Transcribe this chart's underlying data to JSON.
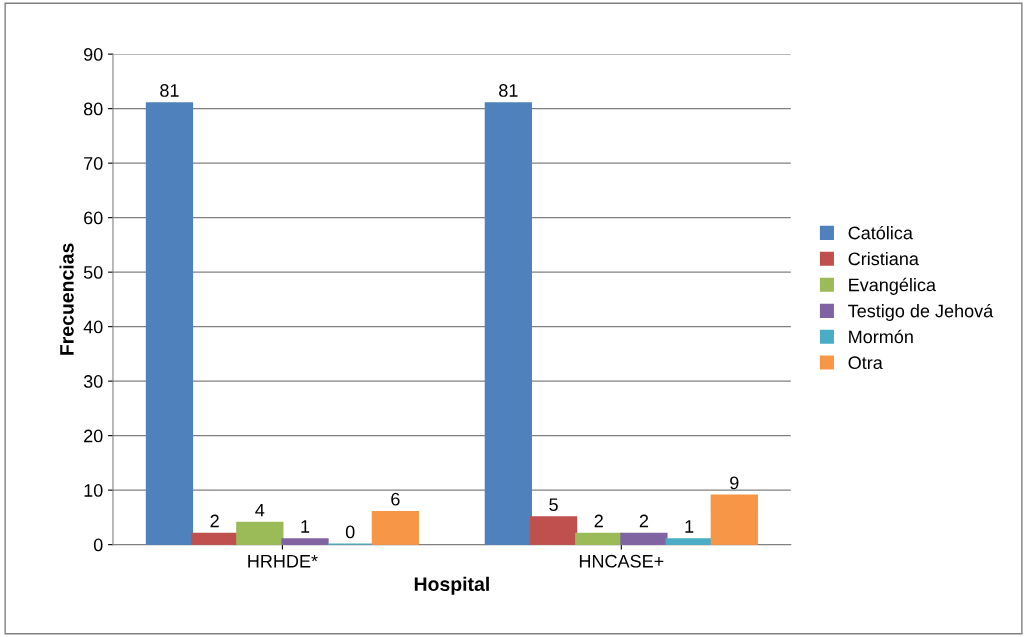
{
  "chart_data": {
    "type": "bar",
    "xlabel": "Hospital",
    "ylabel": "Frecuencias",
    "categories": [
      "HRHDE*",
      "HNCASE+"
    ],
    "series": [
      {
        "name": "Católica",
        "color": "#4f81bd",
        "values": [
          81,
          81
        ]
      },
      {
        "name": "Cristiana",
        "color": "#c0504d",
        "values": [
          2,
          5
        ]
      },
      {
        "name": "Evangélica",
        "color": "#9bbb59",
        "values": [
          4,
          2
        ]
      },
      {
        "name": "Testigo de Jehová",
        "color": "#8064a2",
        "values": [
          1,
          2
        ]
      },
      {
        "name": "Mormón",
        "color": "#4bacc6",
        "values": [
          0,
          1
        ]
      },
      {
        "name": "Otra",
        "color": "#f79646",
        "values": [
          6,
          9
        ]
      }
    ],
    "ylim": [
      0,
      90
    ],
    "yticks": [
      0,
      10,
      20,
      30,
      40,
      50,
      60,
      70,
      80,
      90
    ],
    "grid": "y",
    "legend": "right",
    "data_labels": true
  }
}
